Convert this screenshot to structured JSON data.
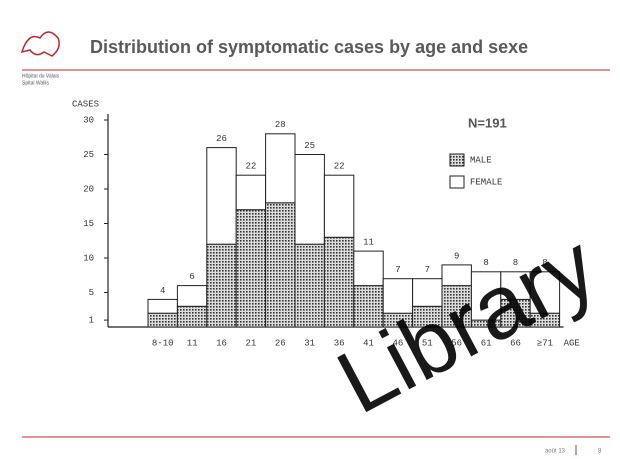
{
  "header": {
    "logo_line1": "Hôpital du Valais",
    "logo_line2": "Spital Wallis",
    "title": "Distribution of symptomatic cases by age and sexe"
  },
  "footer": {
    "date": "août 13",
    "page": "8"
  },
  "watermark": "Library",
  "chart_data": {
    "type": "stacked_bar",
    "y_label": "CASES",
    "x_label": "AGE",
    "annotation": "N=191",
    "categories": [
      "8-10",
      "11",
      "16",
      "21",
      "26",
      "31",
      "36",
      "41",
      "46",
      "51",
      "56",
      "61",
      "66",
      "≥71"
    ],
    "series": [
      {
        "name": "MALE",
        "color": "#8c8c8c",
        "values": [
          2,
          3,
          12,
          17,
          18,
          12,
          13,
          6,
          2,
          3,
          6,
          1,
          4,
          2
        ]
      },
      {
        "name": "FEMALE",
        "color": "#ffffff",
        "values": [
          2,
          3,
          14,
          5,
          10,
          13,
          9,
          5,
          5,
          4,
          3,
          7,
          4,
          6
        ]
      }
    ],
    "totals": [
      4,
      6,
      26,
      22,
      28,
      25,
      22,
      11,
      7,
      7,
      9,
      8,
      8,
      8
    ],
    "ylim": [
      0,
      30
    ],
    "yticks": [
      1,
      5,
      10,
      15,
      20,
      25,
      30
    ],
    "legend": "upper right"
  }
}
